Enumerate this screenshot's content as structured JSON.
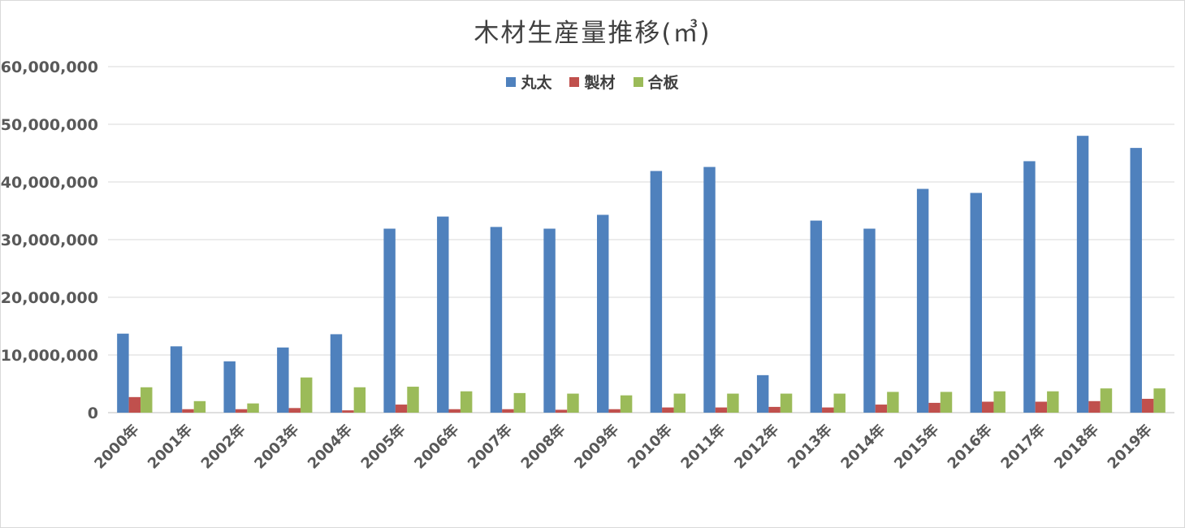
{
  "chart_data": {
    "type": "bar",
    "title": "木材生産量推移(㎥)",
    "xlabel": "",
    "ylabel": "",
    "ylim": [
      0,
      60000000
    ],
    "yticks": [
      0,
      10000000,
      20000000,
      30000000,
      40000000,
      50000000,
      60000000
    ],
    "ytick_labels": [
      "0",
      "10,000,000",
      "20,000,000",
      "30,000,000",
      "40,000,000",
      "50,000,000",
      "60,000,000"
    ],
    "grid": true,
    "legend_position": "top-center",
    "categories": [
      "2000年",
      "2001年",
      "2002年",
      "2003年",
      "2004年",
      "2005年",
      "2006年",
      "2007年",
      "2008年",
      "2009年",
      "2010年",
      "2011年",
      "2012年",
      "2013年",
      "2014年",
      "2015年",
      "2016年",
      "2017年",
      "2018年",
      "2019年"
    ],
    "series": [
      {
        "name": "丸太",
        "color": "#4f81bd",
        "values": [
          13700000,
          11500000,
          8900000,
          11300000,
          13600000,
          31900000,
          34000000,
          32200000,
          31900000,
          34300000,
          41900000,
          42600000,
          6500000,
          33300000,
          31900000,
          38800000,
          38100000,
          43600000,
          48000000,
          45900000
        ]
      },
      {
        "name": "製材",
        "color": "#c0504d",
        "values": [
          2700000,
          600000,
          600000,
          800000,
          400000,
          1400000,
          600000,
          600000,
          500000,
          600000,
          900000,
          900000,
          1000000,
          900000,
          1400000,
          1700000,
          1900000,
          1900000,
          2000000,
          2400000
        ]
      },
      {
        "name": "合板",
        "color": "#9bbb59",
        "values": [
          4400000,
          2000000,
          1600000,
          6100000,
          4400000,
          4500000,
          3700000,
          3400000,
          3300000,
          3000000,
          3300000,
          3300000,
          3300000,
          3300000,
          3600000,
          3600000,
          3700000,
          3700000,
          4200000,
          4200000
        ]
      }
    ]
  }
}
